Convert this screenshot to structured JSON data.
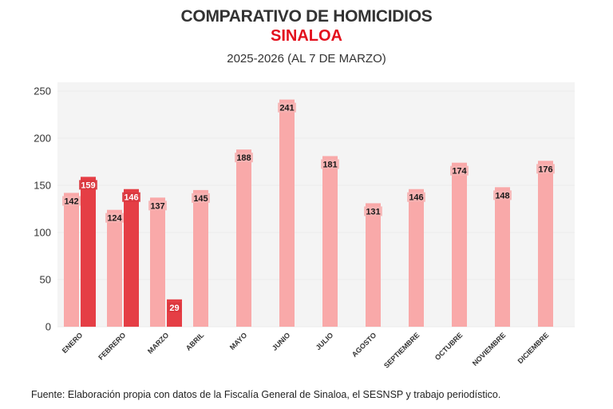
{
  "header": {
    "title": "COMPARATIVO DE HOMICIDIOS",
    "subtitle": "SINALOA",
    "period": "2025-2026 (AL 7 DE MARZO)"
  },
  "footer": {
    "source": "Fuente: Elaboración propia con datos de la Fiscalía General de Sinaloa, el SESNSP y trabajo periodístico."
  },
  "colors": {
    "series_2025": "#f9a9a9",
    "series_2026": "#e53e45",
    "plot_bg": "#f4f4f4",
    "grid": "#ebebeb",
    "title": "#333333",
    "accent": "#e3101d"
  },
  "chart_data": {
    "type": "bar",
    "title": "COMPARATIVO DE HOMICIDIOS",
    "subtitle": "SINALOA",
    "xlabel": "",
    "ylabel": "",
    "ylim": [
      0,
      260
    ],
    "yticks": [
      0,
      50,
      100,
      150,
      200,
      250
    ],
    "grid": true,
    "categories": [
      "ENERO",
      "FEBRERO",
      "MARZO",
      "ABRIL",
      "MAYO",
      "JUNIO",
      "JULIO",
      "AGOSTO",
      "SEPTIEMBRE",
      "OCTUBRE",
      "NOVIEMBRE",
      "DICIEMBRE"
    ],
    "series": [
      {
        "name": "2025",
        "values": [
          142,
          124,
          137,
          145,
          188,
          241,
          181,
          131,
          146,
          174,
          148,
          176
        ]
      },
      {
        "name": "2026",
        "values": [
          159,
          146,
          29,
          null,
          null,
          null,
          null,
          null,
          null,
          null,
          null,
          null
        ]
      }
    ]
  }
}
